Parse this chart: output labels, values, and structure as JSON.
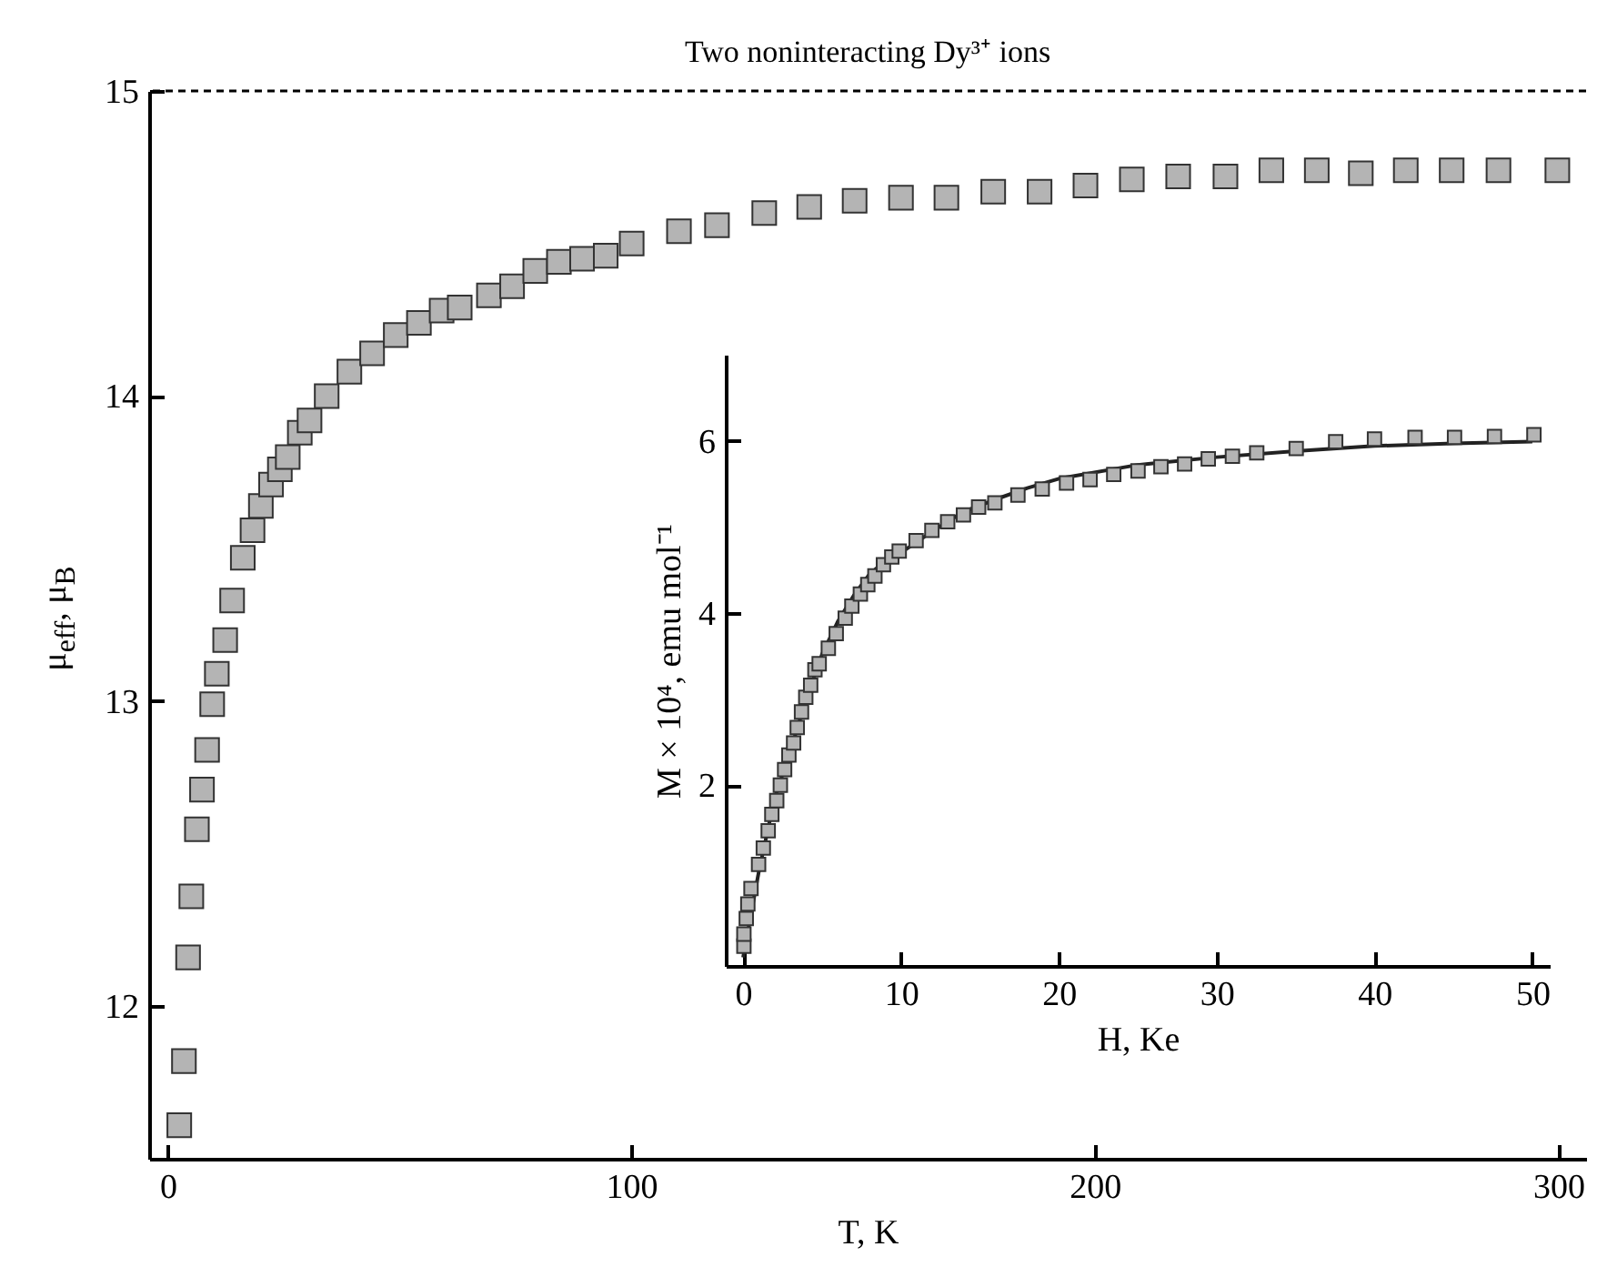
{
  "chart_data": [
    {
      "type": "scatter",
      "xlabel": "T, K",
      "ylabel": "μ$_{eff}$, μ$_{B}$",
      "marker": "square",
      "color": "#b4b4b4",
      "xlim": [
        -4,
        306
      ],
      "ylim": [
        11.5,
        15.0
      ],
      "xticks": [
        0,
        100,
        200,
        300
      ],
      "yticks": [
        12,
        13,
        14,
        15
      ],
      "grid": false,
      "x": [
        2.5,
        3.5,
        4.4,
        5.1,
        6.3,
        7.4,
        8.5,
        9.6,
        10.6,
        12.4,
        13.9,
        16.2,
        18.3,
        20.1,
        22.3,
        24.2,
        25.9,
        28.5,
        30.6,
        34.3,
        39.2,
        44.1,
        49.2,
        54.2,
        59.1,
        63,
        69.3,
        74.3,
        79.3,
        84.4,
        89.4,
        94.5,
        100.1,
        110.3,
        118.5,
        128.7,
        138.4,
        148.2,
        158.2,
        168,
        178.1,
        188.1,
        198,
        208,
        218,
        228.2,
        238.1,
        247.9,
        257.4,
        267.1,
        277,
        287.1,
        299.8
      ],
      "values": [
        11.61,
        11.82,
        12.16,
        12.36,
        12.58,
        12.71,
        12.84,
        12.99,
        13.09,
        13.2,
        13.33,
        13.47,
        13.56,
        13.64,
        13.71,
        13.76,
        13.8,
        13.88,
        13.92,
        14.0,
        14.08,
        14.14,
        14.2,
        14.24,
        14.28,
        14.29,
        14.33,
        14.36,
        14.41,
        14.44,
        14.45,
        14.46,
        14.5,
        14.54,
        14.56,
        14.6,
        14.62,
        14.64,
        14.65,
        14.65,
        14.67,
        14.67,
        14.69,
        14.71,
        14.72,
        14.72,
        14.74,
        14.74,
        14.73,
        14.74,
        14.74,
        14.74,
        14.74
      ],
      "ref_lines": [
        {
          "axis": "y",
          "value": 15,
          "label": "Two noninteracting Dy³⁺ ions",
          "line_style": "dashed",
          "color": "#000000"
        }
      ]
    },
    {
      "type": "scatter",
      "xlabel": "H, Ke",
      "ylabel": "M × 10⁴, emu mol⁻¹",
      "xlim": [
        -1.1,
        51.1
      ],
      "ylim": [
        -0.1,
        7.0
      ],
      "xticks": [
        0,
        10,
        20,
        30,
        40,
        50
      ],
      "yticks": [
        2,
        4,
        6
      ],
      "grid": false,
      "series": [
        {
          "marker": "square",
          "color": "#b4b4b4",
          "x": [
            0.05,
            0.05,
            0.2,
            0.3,
            0.5,
            0.98,
            1.28,
            1.59,
            1.82,
            2.13,
            2.36,
            2.63,
            2.9,
            3.2,
            3.43,
            3.7,
            3.97,
            4.28,
            4.55,
            4.82,
            5.4,
            5.9,
            6.47,
            6.89,
            7.43,
            7.9,
            8.35,
            8.89,
            9.42,
            9.89,
            10.96,
            11.96,
            12.96,
            13.96,
            14.92,
            15.95,
            17.41,
            18.95,
            20.49,
            21.98,
            23.48,
            25.02,
            26.47,
            27.97,
            29.47,
            31.0,
            32.54,
            35.04,
            37.54,
            40.0,
            42.57,
            45.07,
            47.6,
            50.1
          ],
          "values": [
            0.13,
            0.27,
            0.45,
            0.62,
            0.8,
            1.08,
            1.27,
            1.47,
            1.66,
            1.82,
            2.0,
            2.18,
            2.35,
            2.49,
            2.67,
            2.85,
            3.02,
            3.16,
            3.34,
            3.41,
            3.59,
            3.76,
            3.94,
            4.08,
            4.22,
            4.33,
            4.43,
            4.56,
            4.65,
            4.72,
            4.84,
            4.96,
            5.06,
            5.14,
            5.23,
            5.28,
            5.37,
            5.44,
            5.51,
            5.55,
            5.61,
            5.65,
            5.7,
            5.73,
            5.79,
            5.82,
            5.86,
            5.91,
            5.99,
            6.02,
            6.04,
            6.04,
            6.05,
            6.07
          ]
        },
        {
          "type": "line",
          "color": "#222222",
          "line_style": "solid",
          "x": [
            0,
            1,
            2,
            3,
            4,
            5,
            6,
            7,
            8,
            9,
            10,
            12,
            14,
            16,
            18,
            20,
            25,
            30,
            35,
            40,
            45,
            50
          ],
          "values": [
            0,
            1.0,
            1.85,
            2.4,
            3.0,
            3.52,
            3.9,
            4.2,
            4.45,
            4.6,
            4.7,
            4.95,
            5.18,
            5.32,
            5.45,
            5.56,
            5.72,
            5.81,
            5.88,
            5.94,
            5.97,
            5.99
          ]
        }
      ]
    }
  ]
}
